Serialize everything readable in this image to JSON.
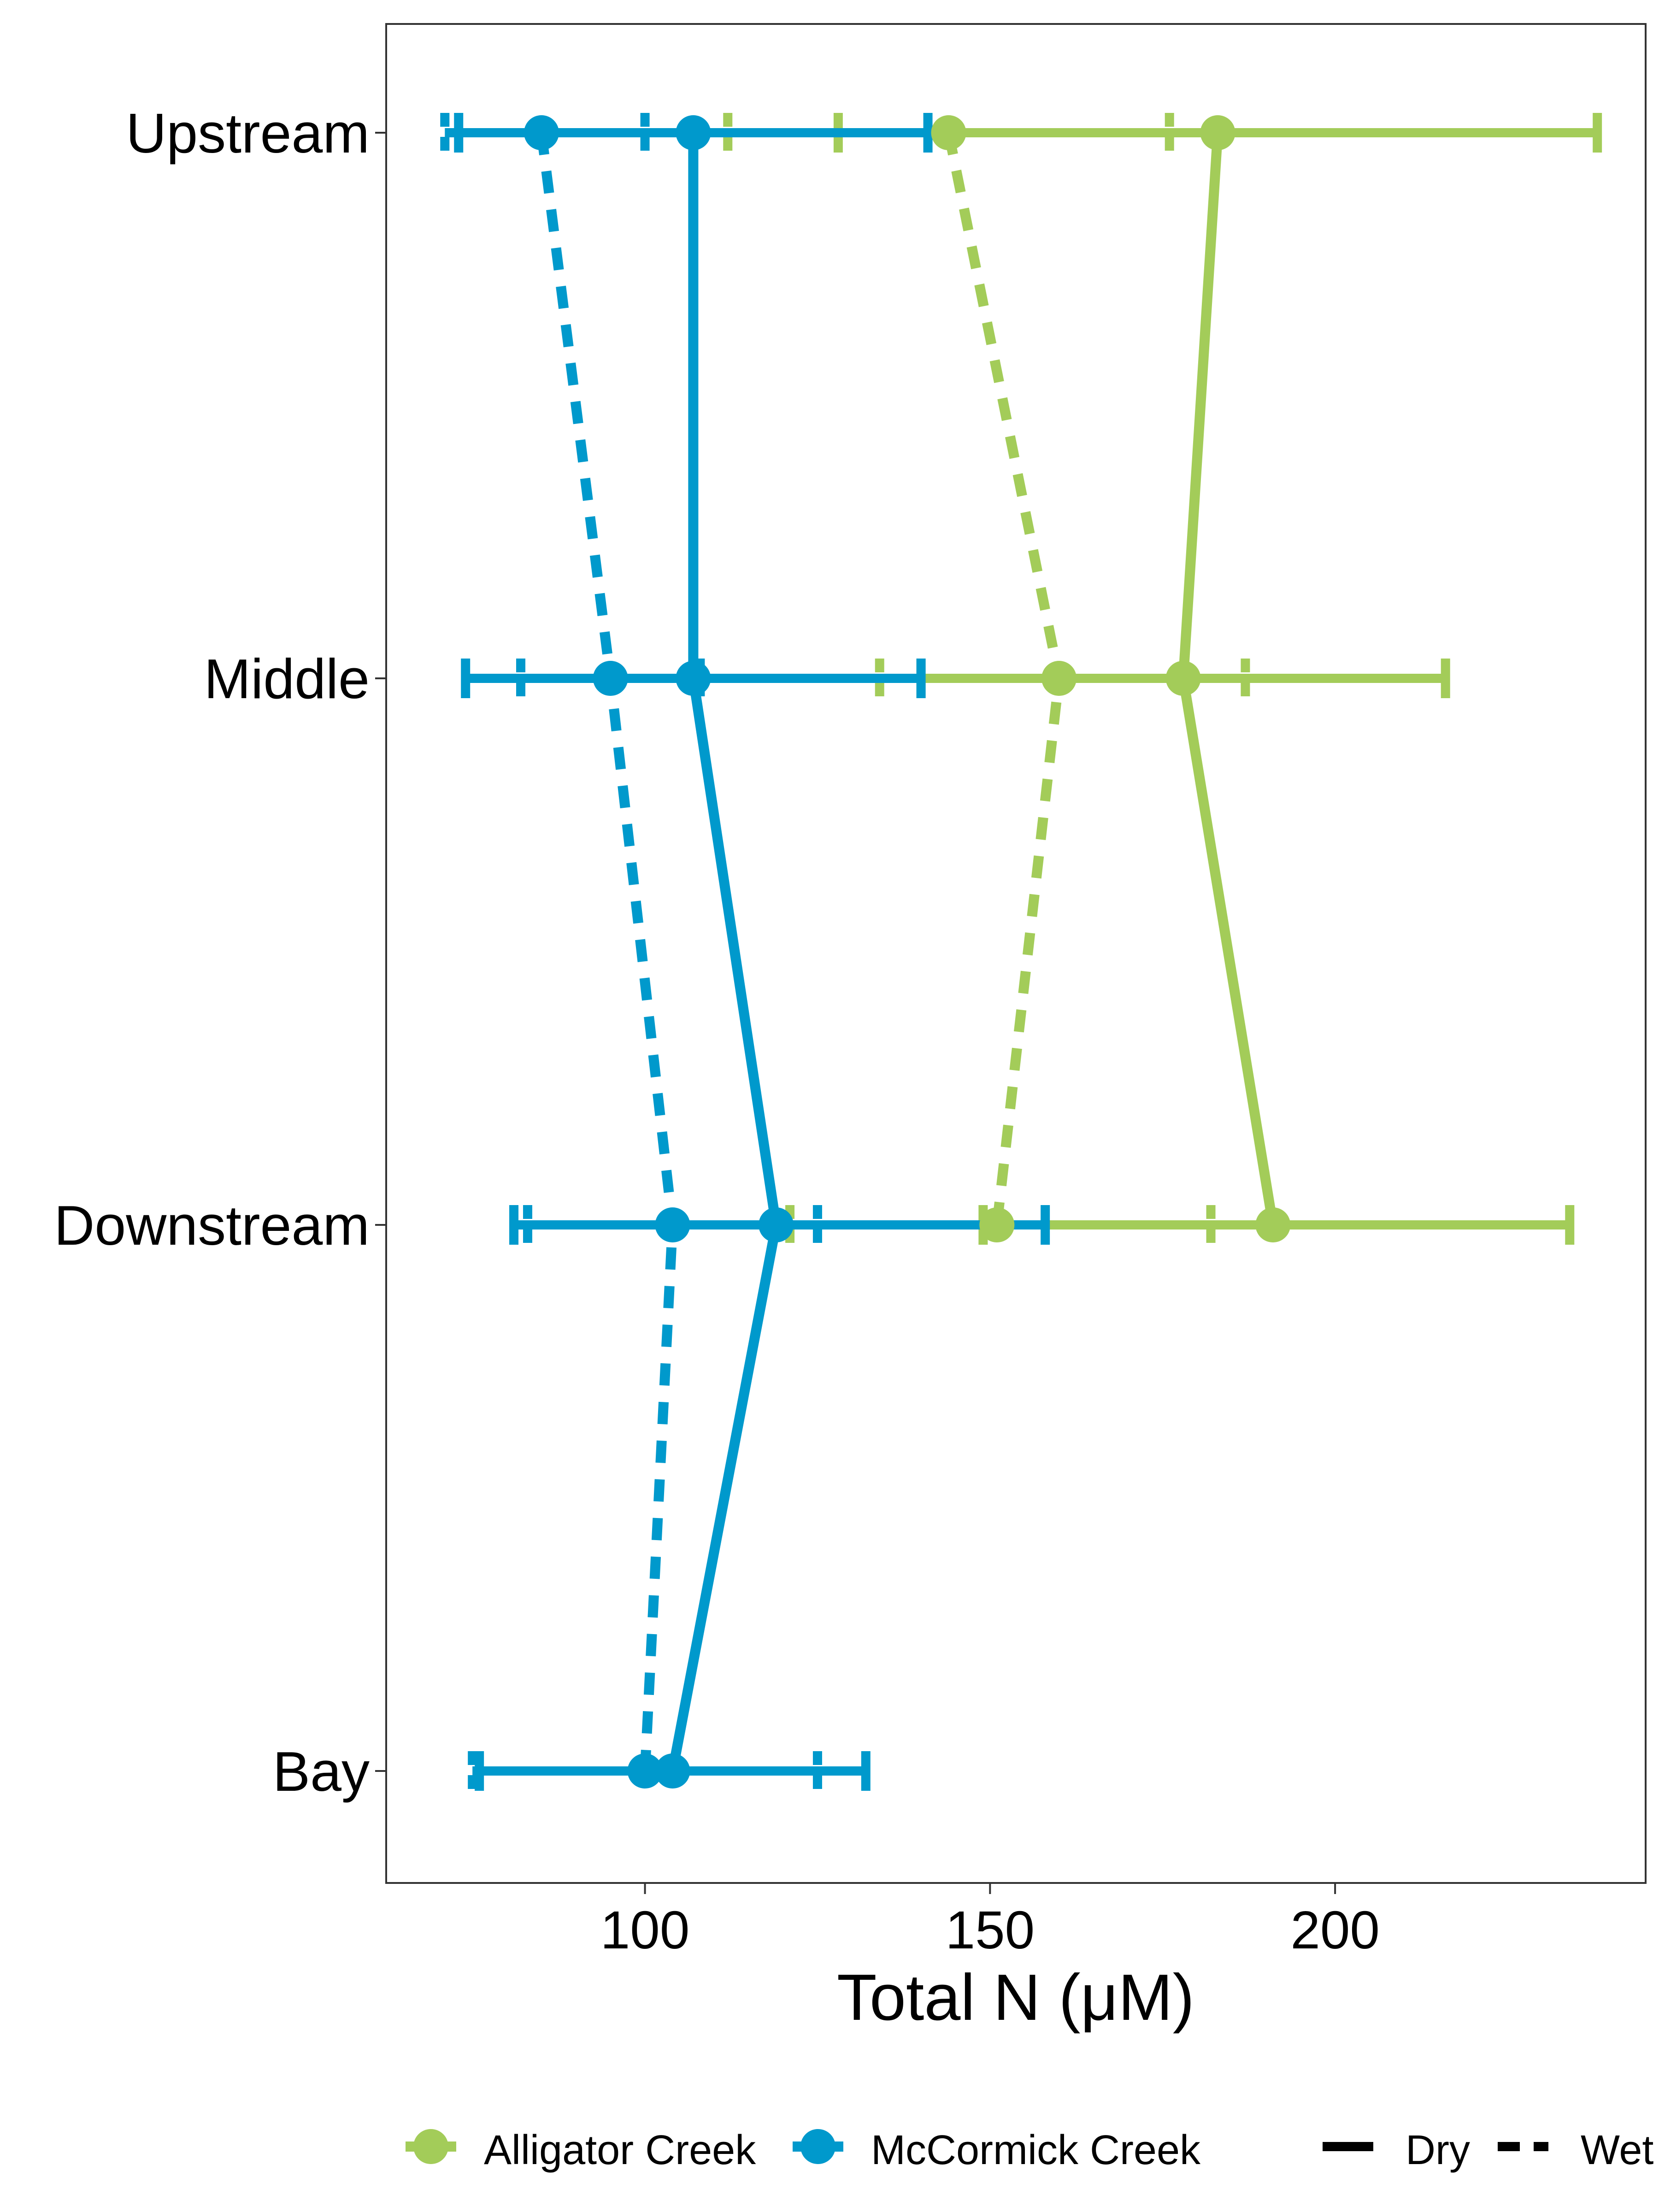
{
  "chart_data": {
    "type": "line",
    "orientation": "horizontal",
    "xlabel": "Total N (μM)",
    "ylabel": "",
    "xlim": [
      62.5,
      245
    ],
    "x_ticks": [
      100,
      150,
      200
    ],
    "categories": [
      "Upstream",
      "Middle",
      "Downstream",
      "Bay"
    ],
    "colors": {
      "Alligator Creek": "#a3cc59",
      "McCormick Creek": "#0099cc"
    },
    "series": [
      {
        "creek": "Alligator Creek",
        "season": "Dry",
        "linetype": "solid",
        "points": [
          {
            "site": "Upstream",
            "value": 183,
            "low": 128,
            "high": 238
          },
          {
            "site": "Middle",
            "value": 178,
            "low": 140,
            "high": 216
          },
          {
            "site": "Downstream",
            "value": 191,
            "low": 149,
            "high": 234
          }
        ]
      },
      {
        "creek": "Alligator Creek",
        "season": "Wet",
        "linetype": "dashed",
        "points": [
          {
            "site": "Upstream",
            "value": 144,
            "low": 112,
            "high": 176
          },
          {
            "site": "Middle",
            "value": 160,
            "low": 134,
            "high": 187
          },
          {
            "site": "Downstream",
            "value": 151,
            "low": 121,
            "high": 182
          }
        ]
      },
      {
        "creek": "McCormick Creek",
        "season": "Dry",
        "linetype": "solid",
        "points": [
          {
            "site": "Upstream",
            "value": 107,
            "low": 73,
            "high": 141
          },
          {
            "site": "Middle",
            "value": 107,
            "low": 74,
            "high": 140
          },
          {
            "site": "Downstream",
            "value": 119,
            "low": 81,
            "high": 158
          },
          {
            "site": "Bay",
            "value": 104,
            "low": 76,
            "high": 132
          }
        ]
      },
      {
        "creek": "McCormick Creek",
        "season": "Wet",
        "linetype": "dashed",
        "points": [
          {
            "site": "Upstream",
            "value": 85,
            "low": 71,
            "high": 100
          },
          {
            "site": "Middle",
            "value": 95,
            "low": 82,
            "high": 108
          },
          {
            "site": "Downstream",
            "value": 104,
            "low": 83,
            "high": 125
          },
          {
            "site": "Bay",
            "value": 100,
            "low": 75,
            "high": 125
          }
        ]
      }
    ],
    "legend": {
      "position": "bottom",
      "color_items": [
        "Alligator Creek",
        "McCormick Creek"
      ],
      "linetype_items": [
        {
          "label": "Dry",
          "linetype": "solid"
        },
        {
          "label": "Wet",
          "linetype": "dashed"
        }
      ]
    },
    "grid": false
  }
}
